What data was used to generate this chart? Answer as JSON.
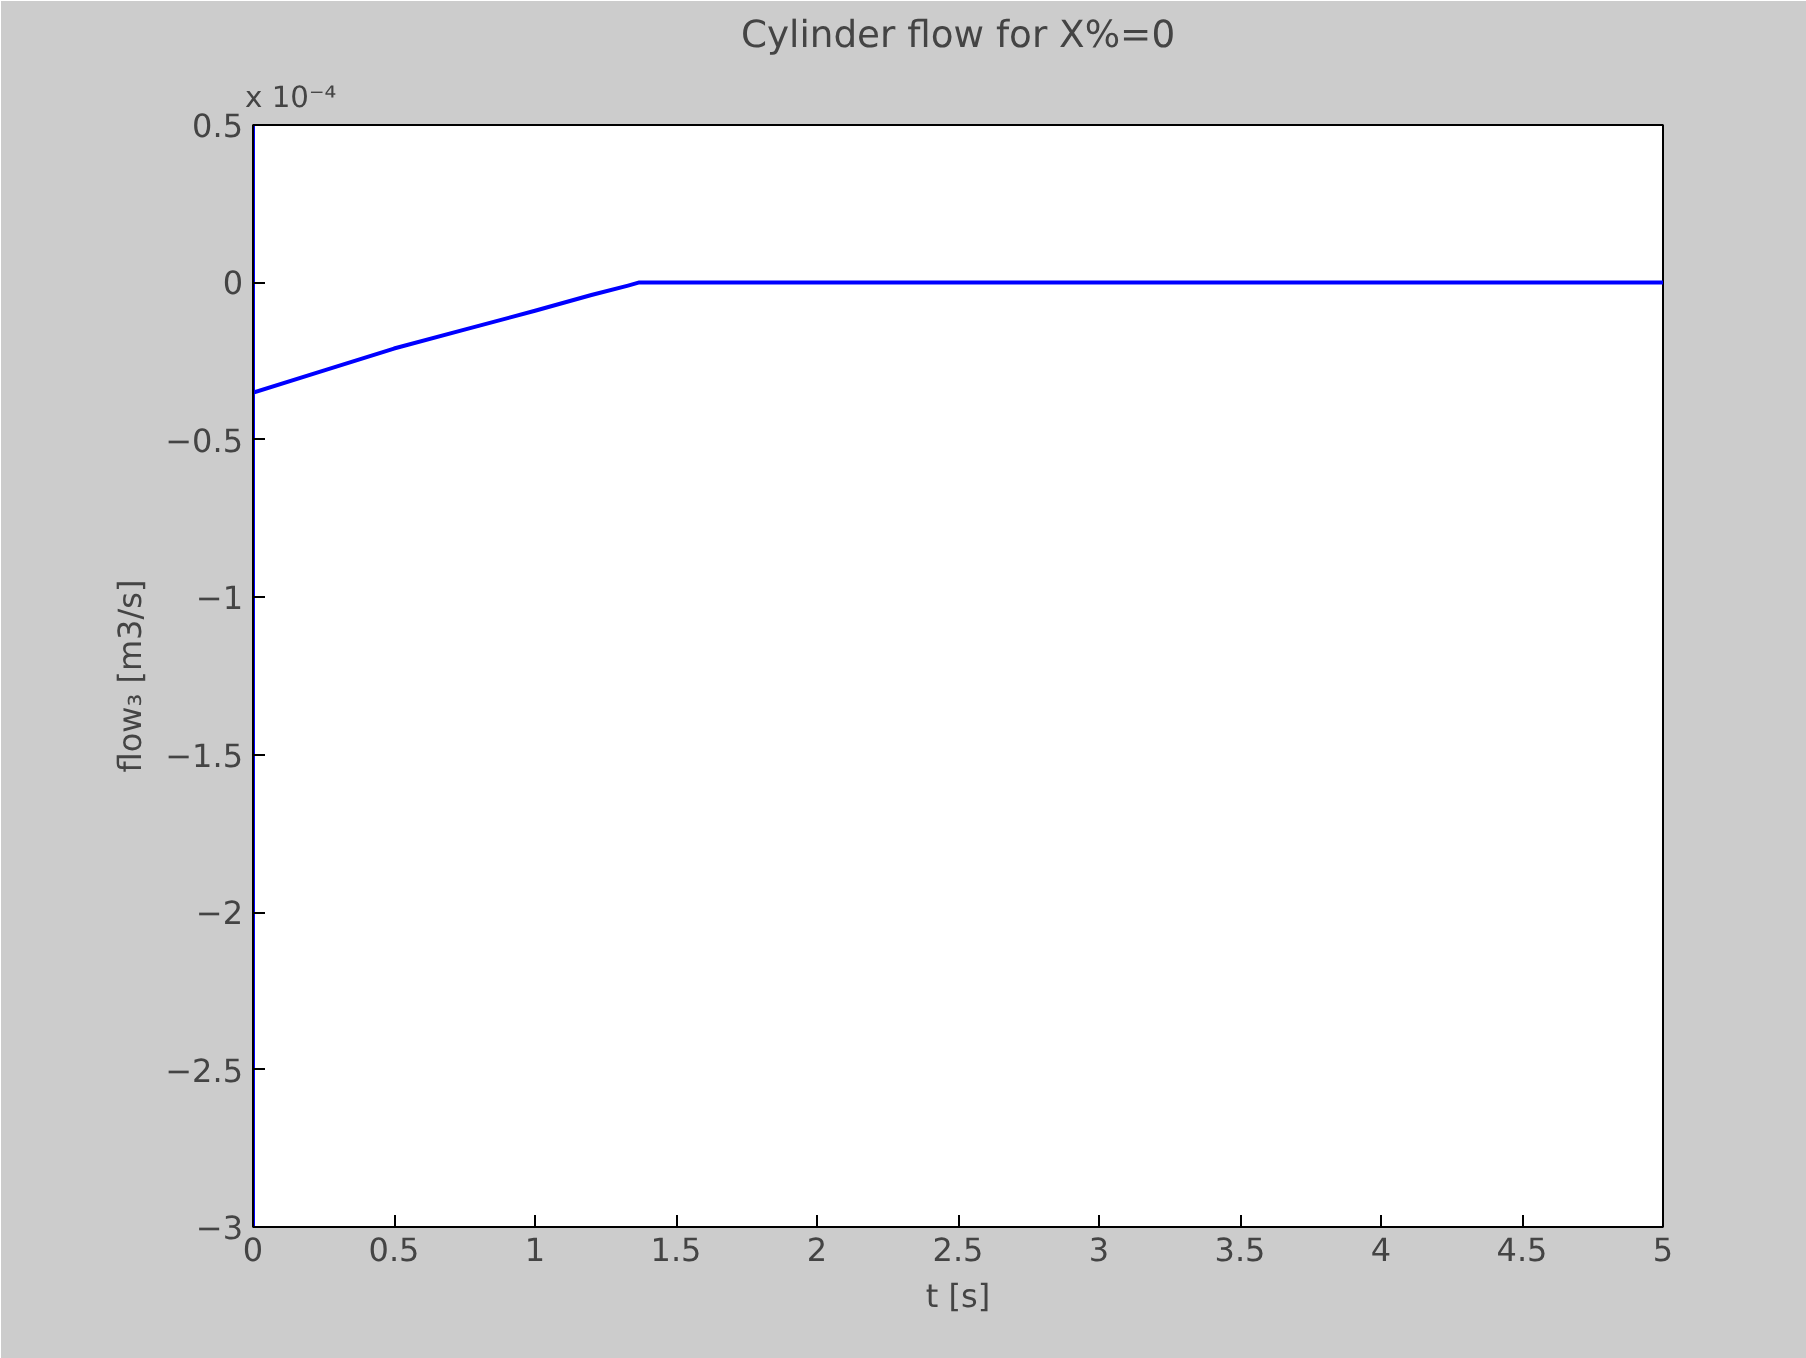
{
  "chart_data": {
    "type": "line",
    "title": "Cylinder flow for X%=0",
    "xlabel": "t [s]",
    "ylabel": "flow₃ [m3/s]",
    "annotations": [
      "x 10⁻⁴"
    ],
    "series": [
      {
        "color": "#0000ff",
        "x": [
          0,
          0,
          0,
          0.25,
          0.5,
          0.75,
          1.0,
          1.2,
          1.33,
          1.37,
          1.5,
          2,
          3,
          4,
          5
        ],
        "values": [
          0.5,
          -3,
          -0.35,
          -0.28,
          -0.21,
          -0.15,
          -0.09,
          -0.04,
          -0.01,
          0,
          0,
          0,
          0,
          0,
          0
        ]
      }
    ],
    "xlim": [
      0,
      5
    ],
    "ylim": [
      -3,
      0.5
    ],
    "xticks": [
      0,
      0.5,
      1,
      1.5,
      2,
      2.5,
      3,
      3.5,
      4,
      4.5,
      5
    ],
    "yticks": [
      -3,
      -2.5,
      -2,
      -1.5,
      -1,
      -0.5,
      0,
      0.5
    ],
    "grid": false,
    "line_style": "solid",
    "marker": "none"
  }
}
